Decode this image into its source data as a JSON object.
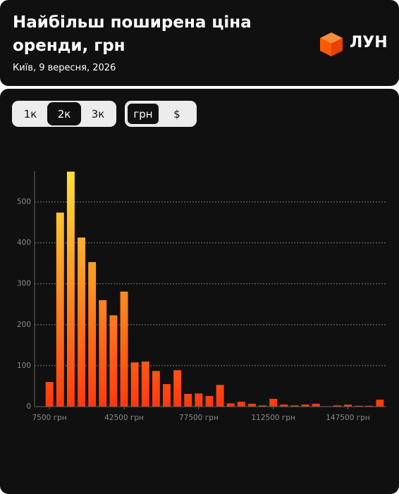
{
  "header": {
    "title": "Найбільш поширена ціна оренди, грн",
    "subtitle": "Київ, 9 вересня, 2026",
    "logo": "ЛУН"
  },
  "controls": {
    "step": [
      "1к",
      "2к",
      "3к"
    ],
    "step_selected": 1,
    "currency": [
      "грн",
      "$"
    ],
    "currency_selected": 0
  },
  "chart_data": {
    "type": "bar",
    "x": [
      7500,
      12500,
      17500,
      22500,
      27500,
      32500,
      37500,
      42500,
      47500,
      52500,
      57500,
      62500,
      67500,
      72500,
      77500,
      82500,
      87500,
      92500,
      97500,
      102500,
      107500,
      112500,
      117500,
      122500,
      127500,
      132500,
      137500,
      142500,
      147500,
      152500,
      157500,
      162500
    ],
    "values": [
      60,
      474,
      574,
      413,
      353,
      260,
      223,
      281,
      108,
      110,
      87,
      55,
      89,
      31,
      32,
      26,
      53,
      8,
      12,
      7,
      3,
      19,
      5,
      3,
      5,
      7,
      1,
      3,
      5,
      2,
      2,
      17
    ],
    "bar_width": 3600,
    "color_top": "#ffe23a",
    "color_bottom": "#ff3a0c",
    "xlim": [
      500,
      165500
    ],
    "xticks": [
      {
        "value": 7500,
        "label": "7500 грн"
      },
      {
        "value": 42500,
        "label": "42500 грн"
      },
      {
        "value": 77500,
        "label": "77500 грн"
      },
      {
        "value": 112500,
        "label": "112500 грн"
      },
      {
        "value": 147500,
        "label": "147500 грн"
      }
    ],
    "ylim": [
      0,
      575
    ],
    "yticks": [
      0,
      100,
      200,
      300,
      400,
      500
    ],
    "grid": true
  }
}
